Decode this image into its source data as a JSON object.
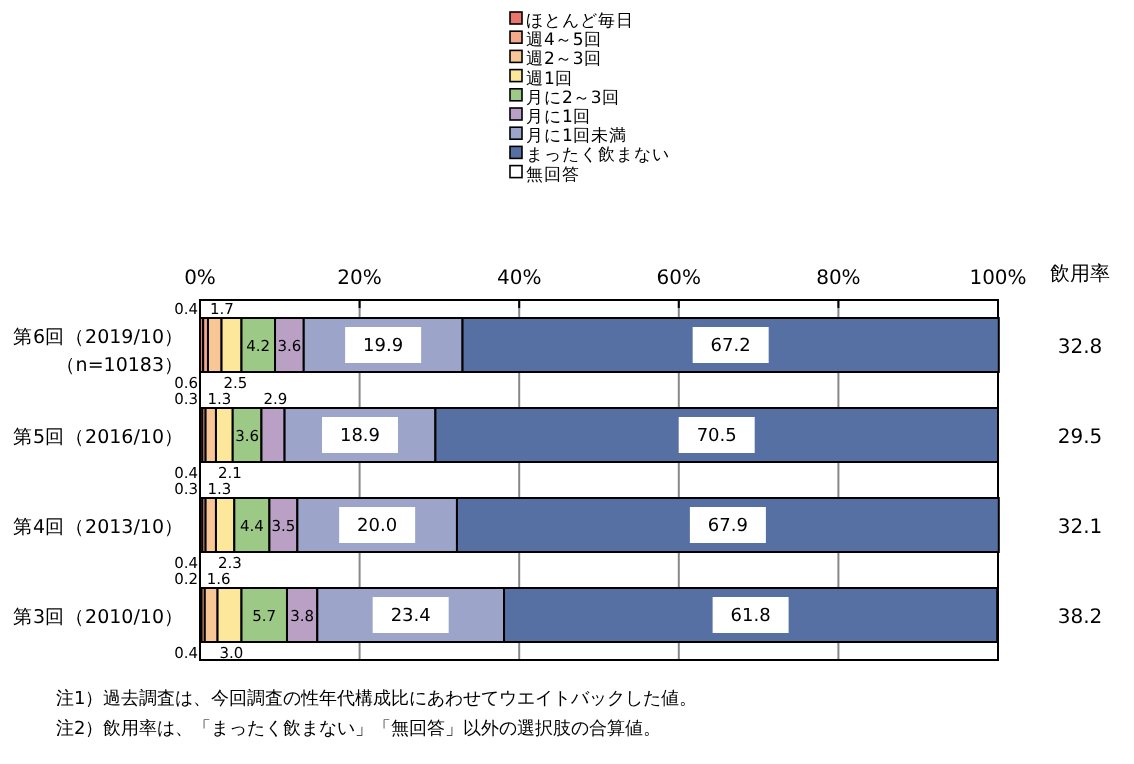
{
  "chart_data": {
    "type": "bar",
    "orientation": "horizontal",
    "stacked": true,
    "data_labels": true,
    "grid": "x",
    "legend": "top",
    "categories": [
      "第6回（2019/10）",
      "第5回（2016/10）",
      "第4回（2013/10）",
      "第3回（2010/10）"
    ],
    "xlim": [
      0,
      100
    ],
    "xticks": [
      {
        "value": 0,
        "label": "0%"
      },
      {
        "value": 20,
        "label": "20%"
      },
      {
        "value": 40,
        "label": "40%"
      },
      {
        "value": 60,
        "label": "60%"
      },
      {
        "value": 80,
        "label": "80%"
      },
      {
        "value": 100,
        "label": "100%"
      }
    ],
    "series": [
      {
        "name": "ほとんど毎日",
        "color": "#e8766a",
        "values": [
          0.4,
          0.3,
          0.3,
          0.2
        ],
        "value_labels": [
          "0.4",
          "0.3",
          "0.3",
          "0.2"
        ]
      },
      {
        "name": "週4～5回",
        "color": "#f4a98a",
        "values": [
          0.6,
          0.4,
          0.4,
          0.4
        ],
        "value_labels": [
          "0.6",
          "0.4",
          "0.4",
          "0.4"
        ]
      },
      {
        "name": "週2～3回",
        "color": "#f9c796",
        "values": [
          1.7,
          1.3,
          1.3,
          1.6
        ],
        "value_labels": [
          "1.7",
          "1.3",
          "1.3",
          "1.6"
        ]
      },
      {
        "name": "週1回",
        "color": "#fde79a",
        "values": [
          2.5,
          2.1,
          2.3,
          3.0
        ],
        "value_labels": [
          "2.5",
          "2.1",
          "2.3",
          "3.0"
        ]
      },
      {
        "name": "月に2～3回",
        "color": "#9dc986",
        "values": [
          4.2,
          3.6,
          4.4,
          5.7
        ],
        "value_labels": [
          "4.2",
          "3.6",
          "4.4",
          "5.7"
        ]
      },
      {
        "name": "月に1回",
        "color": "#b9a0c4",
        "values": [
          3.6,
          2.9,
          3.5,
          3.8
        ],
        "value_labels": [
          "3.6",
          "2.9",
          "3.5",
          "3.8"
        ]
      },
      {
        "name": "月に1回未満",
        "color": "#9ca4c9",
        "values": [
          19.9,
          18.9,
          20.0,
          23.4
        ],
        "value_labels": [
          "19.9",
          "18.9",
          "20.0",
          "23.4"
        ]
      },
      {
        "name": "まったく飲まない",
        "color": "#5670a3",
        "values": [
          67.2,
          70.5,
          67.9,
          61.8
        ],
        "value_labels": [
          "67.2",
          "70.5",
          "67.9",
          "61.8"
        ]
      },
      {
        "name": "無回答",
        "color": "#ffffff",
        "values": [
          null,
          null,
          null,
          null
        ]
      }
    ],
    "annotations": [
      "（n=10183）",
      "飲用率",
      "32.8",
      "29.5",
      "32.1",
      "38.2",
      "注1）過去調査は、今回調査の性年代構成比にあわせてウエイトバックした値。",
      "注2）飲用率は、「まったく飲まない」「無回答」以外の選択肢の合算値。"
    ]
  }
}
